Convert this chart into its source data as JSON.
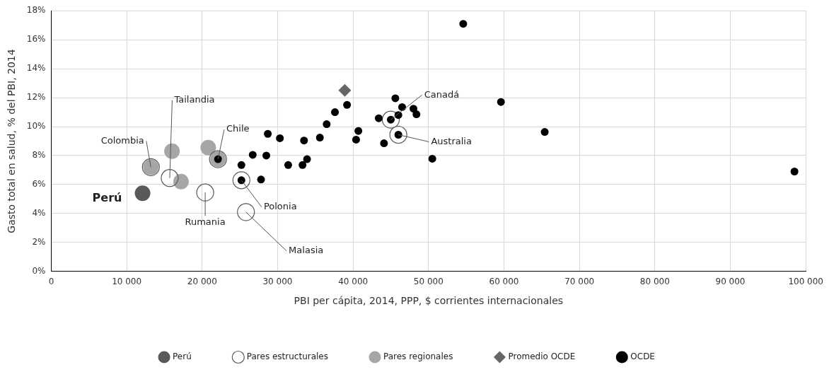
{
  "chart_data": {
    "type": "scatter",
    "xlabel": "PBI per cápita, 2014, PPP, $ corrientes internacionales",
    "ylabel": "Gasto total en salud, % del PBI, 2014",
    "xlim": [
      0,
      100000
    ],
    "ylim": [
      0,
      18
    ],
    "xticks": [
      0,
      {
        "value": 10000,
        "label": "10 000"
      },
      {
        "value": 20000,
        "label": "20 000"
      },
      {
        "value": 30000,
        "label": "30 000"
      },
      {
        "value": 40000,
        "label": "40 000"
      },
      {
        "value": 50000,
        "label": "50 000"
      },
      {
        "value": 60000,
        "label": "60 000"
      },
      {
        "value": 70000,
        "label": "70 000"
      },
      {
        "value": 80000,
        "label": "80 000"
      },
      {
        "value": 90000,
        "label": "90 000"
      },
      {
        "value": 100000,
        "label": "100 000"
      }
    ],
    "yticks": [
      {
        "value": 0,
        "label": "0%"
      },
      {
        "value": 2,
        "label": "2%"
      },
      {
        "value": 4,
        "label": "4%"
      },
      {
        "value": 6,
        "label": "6%"
      },
      {
        "value": 8,
        "label": "8%"
      },
      {
        "value": 10,
        "label": "10%"
      },
      {
        "value": 12,
        "label": "12%"
      },
      {
        "value": 14,
        "label": "14%"
      },
      {
        "value": 16,
        "label": "16%"
      },
      {
        "value": 18,
        "label": "18%"
      }
    ],
    "grid": true,
    "legend": "bottom",
    "series": [
      {
        "name": "Perú",
        "color": "#595959",
        "marker": "circle",
        "x": [
          12100
        ],
        "values": [
          5.4
        ]
      },
      {
        "name": "Pares estructurales",
        "color": "#595959",
        "marker": "circle",
        "x": [
          15700,
          20400,
          25800,
          25200,
          45000,
          46000,
          13200,
          22100
        ],
        "values": [
          6.45,
          5.45,
          4.1,
          6.3,
          10.48,
          9.44,
          7.2,
          7.75
        ]
      },
      {
        "name": "Pares regionales",
        "color": "#a6a6a6",
        "marker": "circle",
        "x": [
          13200,
          16000,
          17200,
          20800,
          22100
        ],
        "values": [
          7.2,
          8.3,
          6.2,
          8.55,
          7.75
        ]
      },
      {
        "name": "Promedio OCDE",
        "color": "#666666",
        "marker": "diamond",
        "x": [
          38900
        ],
        "values": [
          12.5
        ]
      },
      {
        "name": "OCDE",
        "color": "#000000",
        "marker": "circle",
        "x": [
          22100,
          25200,
          25200,
          26700,
          27800,
          28500,
          28700,
          30300,
          31400,
          33300,
          33900,
          33500,
          35600,
          36500,
          37600,
          39200,
          40400,
          40700,
          43400,
          44100,
          45000,
          45600,
          46000,
          46000,
          46500,
          48000,
          48400,
          50500,
          54600,
          59600,
          65400,
          98500
        ],
        "values": [
          7.75,
          6.3,
          7.35,
          8.05,
          6.35,
          8.0,
          9.5,
          9.2,
          7.35,
          7.35,
          7.75,
          9.04,
          9.24,
          10.17,
          11.0,
          11.5,
          9.1,
          9.7,
          10.58,
          8.85,
          10.48,
          11.96,
          10.8,
          9.44,
          11.35,
          11.24,
          10.85,
          7.78,
          17.1,
          11.7,
          9.63,
          6.9
        ]
      }
    ],
    "annotations": [
      {
        "text": "Perú",
        "x": 12100,
        "y": 5.4
      },
      {
        "text": "Colombia",
        "x": 13200,
        "y": 7.2
      },
      {
        "text": "Tailandia",
        "x": 15700,
        "y": 6.45
      },
      {
        "text": "Chile",
        "x": 22100,
        "y": 7.75
      },
      {
        "text": "Rumania",
        "x": 20400,
        "y": 5.45
      },
      {
        "text": "Polonia",
        "x": 25200,
        "y": 6.3
      },
      {
        "text": "Malasia",
        "x": 25800,
        "y": 4.1
      },
      {
        "text": "Canadá",
        "x": 45000,
        "y": 10.48
      },
      {
        "text": "Australia",
        "x": 46000,
        "y": 9.44
      }
    ]
  }
}
